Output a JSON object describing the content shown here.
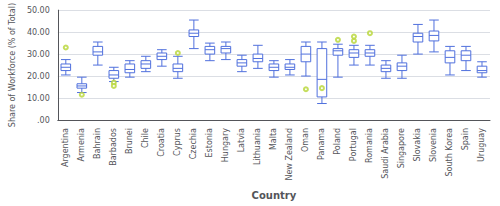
{
  "chart_data": {
    "type": "box",
    "xlabel": "Country",
    "ylabel": "Share of Workforce (% of Total)",
    "categories": [
      "Argentina",
      "Armenia",
      "Bahrain",
      "Barbados",
      "Brunei",
      "Chile",
      "Croatia",
      "Cyprus",
      "Czechia",
      "Estonia",
      "Hungary",
      "Latvia",
      "Lithuania",
      "Malta",
      "New Zealand",
      "Oman",
      "Panama",
      "Poland",
      "Portugal",
      "Romania",
      "Saudi Arabia",
      "Singapore",
      "Slovakia",
      "Slovenia",
      "South Korea",
      "Spain",
      "Uruguay"
    ],
    "boxes": [
      {
        "q1": 22.5,
        "median": 24.0,
        "q3": 25.5,
        "whislo": 20.5,
        "whishi": 27.5,
        "fliers": [
          33.0
        ]
      },
      {
        "q1": 14.5,
        "median": 15.5,
        "q3": 16.5,
        "whislo": 12.5,
        "whishi": 19.5,
        "fliers": [
          11.5
        ]
      },
      {
        "q1": 29.5,
        "median": 31.0,
        "q3": 33.5,
        "whislo": 25.0,
        "whishi": 35.5,
        "fliers": []
      },
      {
        "q1": 19.0,
        "median": 20.5,
        "q3": 22.5,
        "whislo": 17.5,
        "whishi": 24.0,
        "fliers": [
          17.0,
          15.5
        ]
      },
      {
        "q1": 21.5,
        "median": 23.0,
        "q3": 25.5,
        "whislo": 19.5,
        "whishi": 27.0,
        "fliers": []
      },
      {
        "q1": 23.5,
        "median": 25.5,
        "q3": 27.0,
        "whislo": 22.0,
        "whishi": 29.0,
        "fliers": []
      },
      {
        "q1": 27.5,
        "median": 29.0,
        "q3": 30.5,
        "whislo": 24.5,
        "whishi": 32.0,
        "fliers": []
      },
      {
        "q1": 22.0,
        "median": 23.5,
        "q3": 25.5,
        "whislo": 19.0,
        "whishi": 29.0,
        "fliers": [
          30.5
        ]
      },
      {
        "q1": 38.0,
        "median": 39.5,
        "q3": 41.0,
        "whislo": 32.5,
        "whishi": 45.5,
        "fliers": []
      },
      {
        "q1": 30.0,
        "median": 32.0,
        "q3": 33.5,
        "whislo": 27.0,
        "whishi": 35.0,
        "fliers": []
      },
      {
        "q1": 30.5,
        "median": 32.5,
        "q3": 33.5,
        "whislo": 27.5,
        "whishi": 35.5,
        "fliers": []
      },
      {
        "q1": 24.5,
        "median": 26.0,
        "q3": 27.5,
        "whislo": 22.0,
        "whishi": 29.5,
        "fliers": []
      },
      {
        "q1": 26.5,
        "median": 28.0,
        "q3": 30.0,
        "whislo": 23.5,
        "whishi": 34.0,
        "fliers": []
      },
      {
        "q1": 22.5,
        "median": 24.0,
        "q3": 25.5,
        "whislo": 19.5,
        "whishi": 27.0,
        "fliers": []
      },
      {
        "q1": 23.0,
        "median": 24.0,
        "q3": 25.5,
        "whislo": 20.5,
        "whishi": 27.5,
        "fliers": []
      },
      {
        "q1": 26.5,
        "median": 30.0,
        "q3": 33.5,
        "whislo": 20.0,
        "whishi": 35.5,
        "fliers": [
          14.0
        ]
      },
      {
        "q1": 10.5,
        "median": 18.5,
        "q3": 32.5,
        "whislo": 7.5,
        "whishi": 35.5,
        "fliers": [
          14.5
        ]
      },
      {
        "q1": 29.5,
        "median": 31.5,
        "q3": 32.5,
        "whislo": 19.5,
        "whishi": 34.5,
        "fliers": [
          36.5
        ]
      },
      {
        "q1": 28.5,
        "median": 30.5,
        "q3": 32.0,
        "whislo": 25.0,
        "whishi": 34.0,
        "fliers": [
          36.0,
          38.0
        ]
      },
      {
        "q1": 29.0,
        "median": 30.5,
        "q3": 32.0,
        "whislo": 25.0,
        "whishi": 34.0,
        "fliers": [
          39.5
        ]
      },
      {
        "q1": 22.0,
        "median": 23.5,
        "q3": 25.0,
        "whislo": 19.0,
        "whishi": 27.0,
        "fliers": []
      },
      {
        "q1": 22.5,
        "median": 24.5,
        "q3": 26.0,
        "whislo": 19.0,
        "whishi": 29.5,
        "fliers": []
      },
      {
        "q1": 35.5,
        "median": 38.0,
        "q3": 39.5,
        "whislo": 30.0,
        "whishi": 43.5,
        "fliers": []
      },
      {
        "q1": 36.0,
        "median": 38.5,
        "q3": 40.5,
        "whislo": 31.0,
        "whishi": 45.5,
        "fliers": []
      },
      {
        "q1": 26.0,
        "median": 28.5,
        "q3": 31.5,
        "whislo": 20.5,
        "whishi": 33.5,
        "fliers": []
      },
      {
        "q1": 27.0,
        "median": 29.5,
        "q3": 31.5,
        "whislo": 22.5,
        "whishi": 33.5,
        "fliers": []
      },
      {
        "q1": 21.5,
        "median": 22.5,
        "q3": 24.5,
        "whislo": 19.5,
        "whishi": 26.5,
        "fliers": []
      }
    ],
    "ylim": [
      0.0,
      50.0
    ],
    "yticks": [
      {
        "value": 0.0,
        "label": ".00"
      },
      {
        "value": 10.0,
        "label": "10.00"
      },
      {
        "value": 20.0,
        "label": "20.00"
      },
      {
        "value": 30.0,
        "label": "30.00"
      },
      {
        "value": 40.0,
        "label": "40.00"
      },
      {
        "value": 50.0,
        "label": "50.00"
      }
    ],
    "grid": true
  }
}
